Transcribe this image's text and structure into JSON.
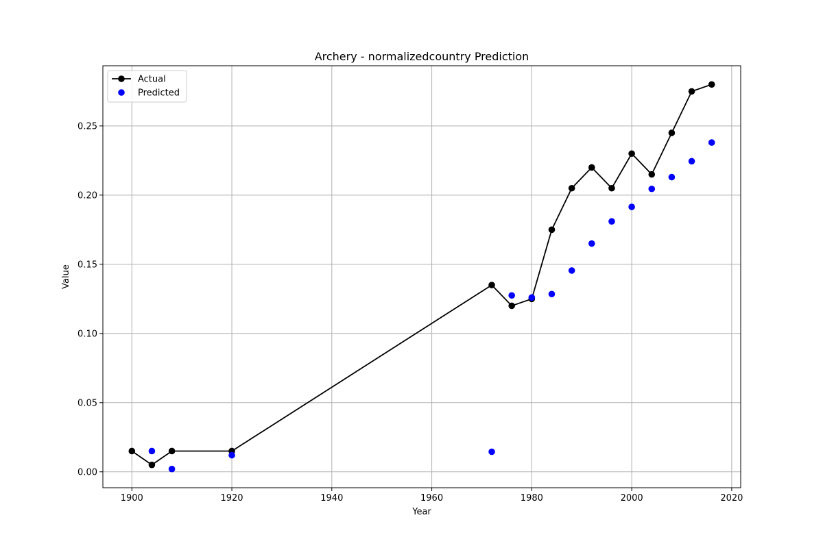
{
  "chart_data": {
    "type": "line",
    "title": "Archery - normalizedcountry Prediction",
    "xlabel": "Year",
    "ylabel": "Value",
    "xlim": [
      1894.2,
      2021.8
    ],
    "ylim": [
      -0.0115,
      0.2935
    ],
    "xticks": [
      1900,
      1920,
      1940,
      1960,
      1980,
      2000,
      2020
    ],
    "xtick_labels": [
      "1900",
      "1920",
      "1940",
      "1960",
      "1980",
      "2000",
      "2020"
    ],
    "yticks": [
      0.0,
      0.05,
      0.1,
      0.15,
      0.2,
      0.25
    ],
    "ytick_labels": [
      "0.00",
      "0.05",
      "0.10",
      "0.15",
      "0.20",
      "0.25"
    ],
    "grid": true,
    "legend_position": "top-left",
    "series": [
      {
        "name": "Actual",
        "style": "line-with-markers",
        "color": "#000000",
        "x": [
          1900,
          1904,
          1908,
          1920,
          1972,
          1976,
          1980,
          1984,
          1988,
          1992,
          1996,
          2000,
          2004,
          2008,
          2012,
          2016
        ],
        "y": [
          0.015,
          0.005,
          0.015,
          0.015,
          0.135,
          0.12,
          0.125,
          0.175,
          0.205,
          0.22,
          0.205,
          0.23,
          0.215,
          0.245,
          0.275,
          0.28
        ]
      },
      {
        "name": "Predicted",
        "style": "scatter",
        "color": "#0000ff",
        "x": [
          1904,
          1908,
          1920,
          1972,
          1976,
          1980,
          1984,
          1988,
          1992,
          1996,
          2000,
          2004,
          2008,
          2012,
          2016
        ],
        "y": [
          0.015,
          0.002,
          0.012,
          0.0145,
          0.1275,
          0.126,
          0.1285,
          0.1455,
          0.165,
          0.181,
          0.1915,
          0.2045,
          0.213,
          0.2245,
          0.238
        ]
      }
    ]
  }
}
